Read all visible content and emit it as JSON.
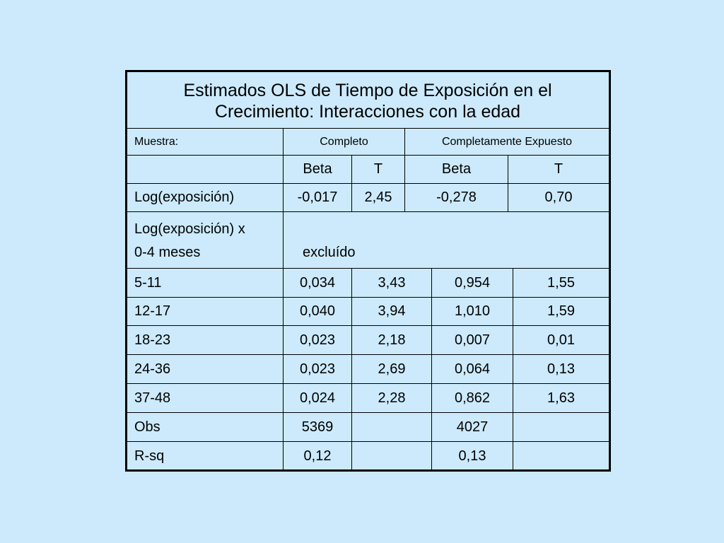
{
  "table": {
    "title_lines": [
      "Estimados OLS de Tiempo de Exposición en el",
      "Crecimiento: Interacciones con la edad"
    ],
    "sample_label": "Muestra:",
    "groups": [
      "Completo",
      "Completamente Expuesto"
    ],
    "columns": [
      "Beta",
      "T",
      "Beta",
      "T"
    ],
    "log_row": [
      "Log(exposición)",
      "-0,017",
      "2,45",
      "-0,278",
      "0,70"
    ],
    "interaction_label": [
      "Log(exposición) x",
      "0-4 meses"
    ],
    "interaction_note": "excluído",
    "rows": [
      [
        "5-11",
        "0,034",
        "3,43",
        "0,954",
        "1,55"
      ],
      [
        "12-17",
        "0,040",
        "3,94",
        "1,010",
        "1,59"
      ],
      [
        "18-23",
        "0,023",
        "2,18",
        "0,007",
        "0,01"
      ],
      [
        "24-36",
        "0,023",
        "2,69",
        "0,064",
        "0,13"
      ],
      [
        "37-48",
        "0,024",
        "2,28",
        "0,862",
        "1,63"
      ],
      [
        "Obs",
        "5369",
        null,
        "4027",
        null
      ],
      [
        "R-sq",
        "0,12",
        null,
        "0,13",
        null
      ]
    ]
  }
}
